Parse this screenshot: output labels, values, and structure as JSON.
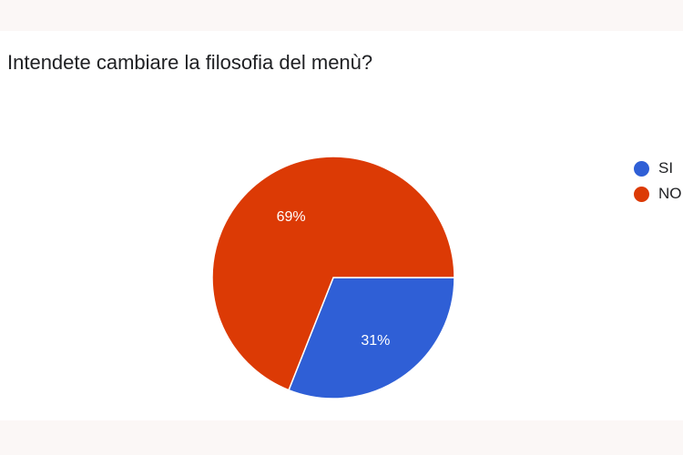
{
  "chart_data": {
    "type": "pie",
    "title": "Intendete cambiare la filosofia del menù?",
    "categories": [
      "SI",
      "NO"
    ],
    "values": [
      31,
      69
    ],
    "labels": [
      "31%",
      "69%"
    ],
    "colors": [
      "#2f5fd6",
      "#dc3a05"
    ],
    "legend_position": "right",
    "start": "3 o'clock, clockwise"
  }
}
